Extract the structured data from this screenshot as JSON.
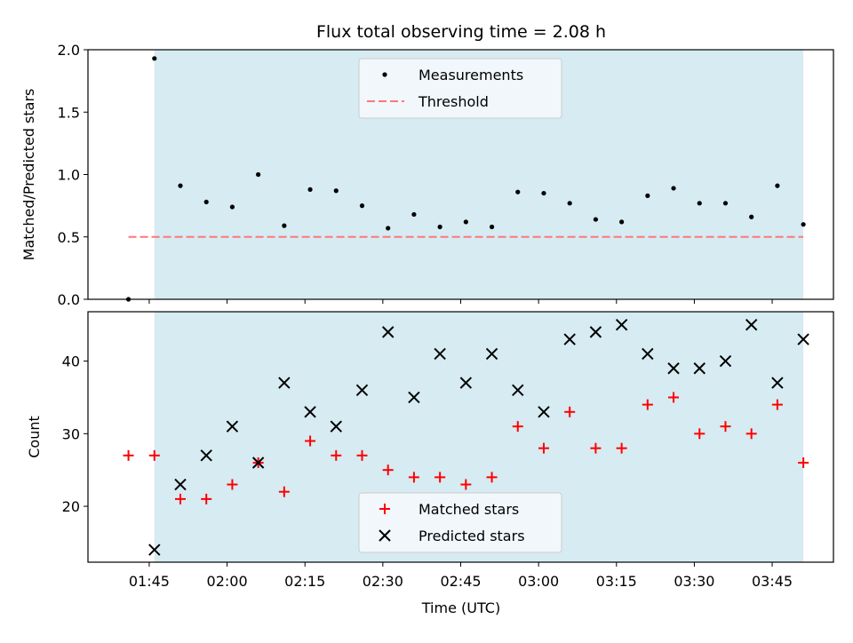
{
  "chart_data": {
    "type": "scatter",
    "title": "Flux total observing time = 2.08 h",
    "xlabel": "Time (UTC)",
    "x_ticks": [
      "01:45",
      "02:00",
      "02:15",
      "02:30",
      "02:45",
      "03:00",
      "03:15",
      "03:30",
      "03:45"
    ],
    "observing_window": {
      "start": "01:46",
      "end": "03:51",
      "color": "#add8e6"
    },
    "times": [
      "01:41",
      "01:46",
      "01:51",
      "01:56",
      "02:01",
      "02:06",
      "02:11",
      "02:16",
      "02:21",
      "02:26",
      "02:31",
      "02:36",
      "02:41",
      "02:46",
      "02:51",
      "02:56",
      "03:01",
      "03:06",
      "03:11",
      "03:16",
      "03:21",
      "03:26",
      "03:31",
      "03:36",
      "03:41",
      "03:46",
      "03:51"
    ],
    "panels": [
      {
        "ylabel": "Matched/Predicted stars",
        "ylim": [
          0,
          2.0
        ],
        "y_ticks": [
          "0.0",
          "0.5",
          "1.0",
          "1.5",
          "2.0"
        ],
        "legend": {
          "position": "top-center",
          "entries": [
            "Measurements",
            "Threshold"
          ]
        },
        "series": [
          {
            "name": "Measurements",
            "marker": "dot",
            "color": "#000000",
            "values": [
              0.0,
              1.93,
              0.91,
              0.78,
              0.74,
              1.0,
              0.59,
              0.88,
              0.87,
              0.75,
              0.57,
              0.68,
              0.58,
              0.62,
              0.58,
              0.86,
              0.85,
              0.77,
              0.64,
              0.62,
              0.83,
              0.89,
              0.77,
              0.77,
              0.66,
              0.91,
              0.6
            ]
          },
          {
            "name": "Threshold",
            "marker": "dashed-line",
            "color": "#ff7777",
            "value": 0.5
          }
        ]
      },
      {
        "ylabel": "Count",
        "ylim": [
          12.3,
          46.8
        ],
        "y_ticks": [
          "20",
          "30",
          "40"
        ],
        "legend": {
          "position": "bottom-center",
          "entries": [
            "Matched stars",
            "Predicted stars"
          ]
        },
        "series": [
          {
            "name": "Matched stars",
            "marker": "plus",
            "color": "#ff0000",
            "values": [
              27,
              27,
              21,
              21,
              23,
              26,
              22,
              29,
              27,
              27,
              25,
              24,
              24,
              23,
              24,
              31,
              28,
              33,
              28,
              28,
              34,
              35,
              30,
              31,
              30,
              34,
              26
            ]
          },
          {
            "name": "Predicted stars",
            "marker": "x",
            "color": "#000000",
            "values": [
              null,
              14,
              23,
              27,
              31,
              26,
              37,
              33,
              31,
              36,
              44,
              35,
              41,
              37,
              41,
              36,
              33,
              43,
              44,
              45,
              41,
              39,
              39,
              40,
              45,
              37,
              43
            ]
          }
        ]
      }
    ]
  }
}
